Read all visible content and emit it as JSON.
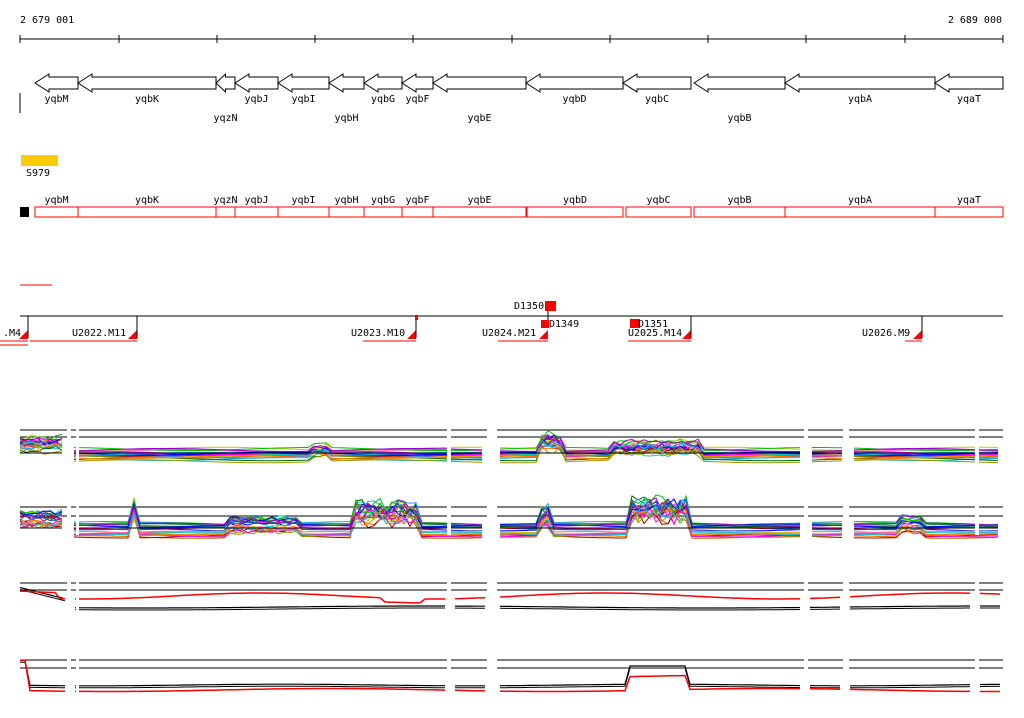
{
  "ruler": {
    "start_label": "2 679 001",
    "end_label": "2 689 000"
  },
  "colors": {
    "feature_red": "#ff0000",
    "gene_outline": "#000000",
    "promoter_yellow": "#ffcc00",
    "track_black": "#000000"
  },
  "genes_top": [
    {
      "name": "yqbM",
      "row": 1
    },
    {
      "name": "yqbK",
      "row": 1
    },
    {
      "name": "yqzN",
      "row": 2
    },
    {
      "name": "yqbJ",
      "row": 1
    },
    {
      "name": "yqbI",
      "row": 1
    },
    {
      "name": "yqbH",
      "row": 2
    },
    {
      "name": "yqbG",
      "row": 1
    },
    {
      "name": "yqbF",
      "row": 1
    },
    {
      "name": "yqbE",
      "row": 2
    },
    {
      "name": "yqbD",
      "row": 1
    },
    {
      "name": "yqbC",
      "row": 1
    },
    {
      "name": "yqbB",
      "row": 2
    },
    {
      "name": "yqbA",
      "row": 1
    },
    {
      "name": "yqaT",
      "row": 1
    }
  ],
  "promoter": {
    "label": "S979"
  },
  "genes_boxes": [
    "yqbM",
    "yqbK",
    "yqzN",
    "yqbJ",
    "yqbI",
    "yqbH",
    "yqbG",
    "yqbF",
    "yqbE",
    "yqbD",
    "yqbC",
    "yqbB",
    "yqbA",
    "yqaT"
  ],
  "segments": [
    {
      "label": ".M4"
    },
    {
      "label": "U2022.M11"
    },
    {
      "label": "U2023.M10"
    },
    {
      "label": "U2024.M21"
    },
    {
      "label": "U2025.M14"
    },
    {
      "label": "U2026.M9"
    }
  ],
  "d_features": [
    {
      "label": "D1350"
    },
    {
      "label": "D1349"
    },
    {
      "label": "D1351"
    }
  ],
  "tracks": [
    {
      "name": "expression-profiles-1",
      "style": "multicolor"
    },
    {
      "name": "expression-profiles-2",
      "style": "multicolor"
    },
    {
      "name": "summary-track-1",
      "style": "red-black"
    },
    {
      "name": "summary-track-2",
      "style": "red-black"
    }
  ]
}
